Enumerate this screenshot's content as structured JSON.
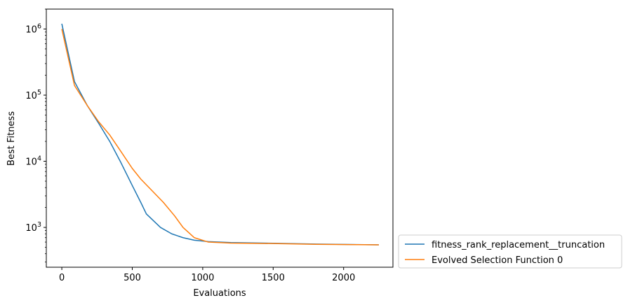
{
  "chart_data": {
    "type": "line",
    "title": "",
    "xlabel": "Evaluations",
    "ylabel": "Best Fitness",
    "xlim": [
      -110,
      2350
    ],
    "ylim": [
      250,
      2000000
    ],
    "yscale": "log",
    "grid": false,
    "legend_position": "outside-lower-right",
    "xticks": [
      0,
      500,
      1000,
      1500,
      2000
    ],
    "xtick_labels": [
      "0",
      "500",
      "1000",
      "1500",
      "2000"
    ],
    "yticks": [
      1000,
      10000,
      100000,
      1000000
    ],
    "ytick_bases": [
      "10",
      "10",
      "10",
      "10"
    ],
    "ytick_exponents": [
      "3",
      "4",
      "5",
      "6"
    ],
    "series": [
      {
        "name": "fitness_rank_replacement__truncation",
        "color": "#1f77b4",
        "x": [
          0,
          90,
          180,
          260,
          340,
          420,
          500,
          560,
          600,
          700,
          780,
          860,
          940,
          1040,
          1200,
          1500,
          1800,
          2100,
          2250
        ],
        "y": [
          1200000,
          160000,
          70000,
          38000,
          20000,
          9500,
          4300,
          2400,
          1600,
          1000,
          800,
          700,
          640,
          610,
          590,
          575,
          560,
          550,
          545
        ]
      },
      {
        "name": "Evolved Selection Function 0",
        "color": "#ff7f0e",
        "x": [
          0,
          90,
          180,
          260,
          340,
          420,
          500,
          560,
          640,
          720,
          800,
          860,
          940,
          1040,
          1200,
          1500,
          1800,
          2100,
          2250
        ],
        "y": [
          1000000,
          140000,
          70000,
          40000,
          25000,
          14000,
          7800,
          5400,
          3600,
          2400,
          1500,
          1000,
          700,
          600,
          580,
          570,
          555,
          548,
          545
        ]
      }
    ]
  }
}
